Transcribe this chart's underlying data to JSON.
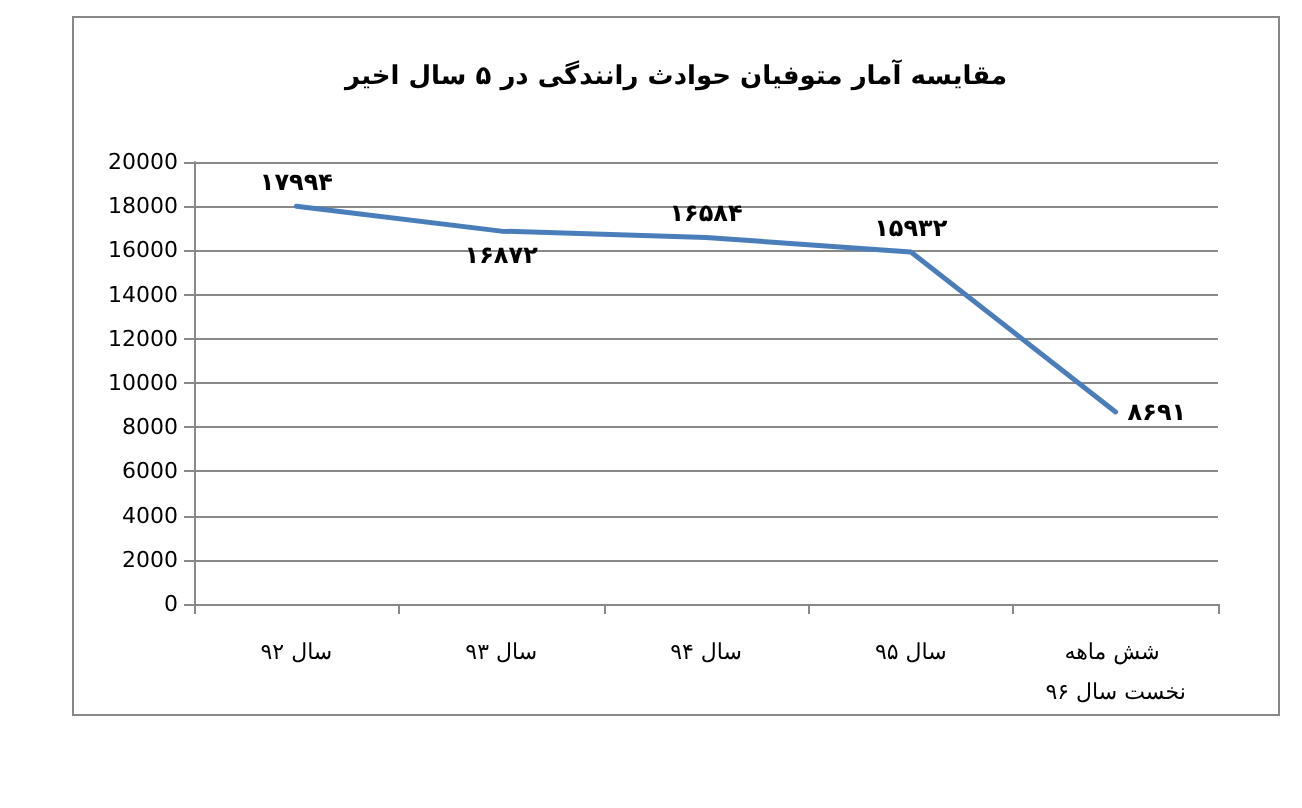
{
  "chart_data": {
    "type": "line",
    "title": "مقایسه آمار متوفیان حوادث رانندگی در ۵ سال اخیر",
    "categories": [
      "سال ۹۲",
      "سال ۹۳",
      "سال ۹۴",
      "سال ۹۵",
      "شش ماهه نخست سال ۹۶"
    ],
    "series": [
      {
        "color": "#4a7ebb",
        "values": [
          17994,
          16872,
          16584,
          15932,
          8691
        ],
        "value_labels": [
          "۱۷۹۹۴",
          "۱۶۸۷۲",
          "۱۶۵۸۴",
          "۱۵۹۳۲",
          "۸۶۹۱"
        ]
      }
    ],
    "ylim": [
      0,
      20000
    ],
    "yticks": [
      0,
      2000,
      4000,
      6000,
      8000,
      10000,
      12000,
      14000,
      16000,
      18000,
      20000
    ],
    "grid": "y",
    "marker": "none",
    "line_style": "solid"
  }
}
